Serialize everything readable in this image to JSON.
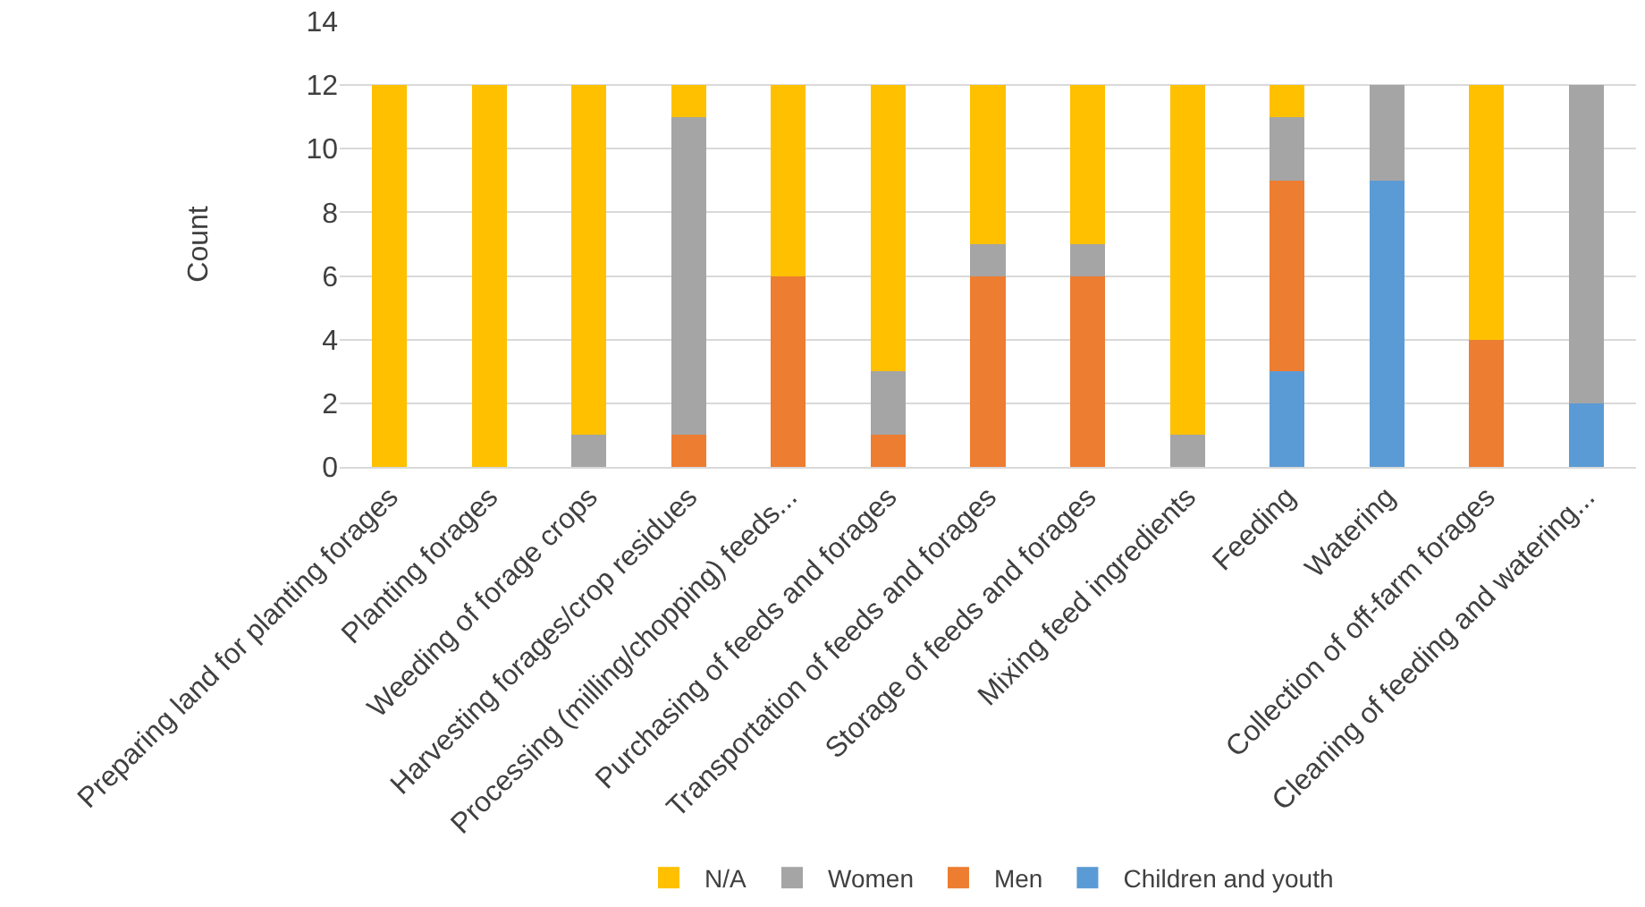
{
  "chart_data": {
    "type": "bar",
    "stacked": true,
    "ylabel": "Count",
    "categories": [
      "Preparing land for planting forages",
      "Planting forages",
      "Weeding of forage crops",
      "Harvesting forages/crop residues",
      "Processing (milling/chopping) feeds...",
      "Purchasing of feeds and forages",
      "Transportation of feeds and forages",
      "Storage of feeds and forages",
      "Mixing feed ingredients",
      "Feeding",
      "Watering",
      "Collection of off-farm forages",
      "Cleaning of feeding and watering..."
    ],
    "series": [
      {
        "name": "Children and youth",
        "color": "#5b9bd5",
        "values": [
          0,
          0,
          0,
          0,
          0,
          0,
          0,
          0,
          0,
          3,
          9,
          0,
          2
        ]
      },
      {
        "name": "Men",
        "color": "#ed7d31",
        "values": [
          0,
          0,
          0,
          1,
          6,
          1,
          6,
          6,
          0,
          6,
          0,
          4,
          0
        ]
      },
      {
        "name": "Women",
        "color": "#a5a5a5",
        "values": [
          0,
          0,
          1,
          10,
          0,
          2,
          1,
          1,
          1,
          2,
          3,
          0,
          10
        ]
      },
      {
        "name": "N/A",
        "color": "#ffc000",
        "values": [
          12,
          12,
          11,
          1,
          6,
          9,
          5,
          5,
          11,
          1,
          0,
          8,
          0
        ]
      }
    ],
    "ylim": [
      0,
      14
    ],
    "yticks": [
      0,
      2,
      4,
      6,
      8,
      10,
      12,
      14
    ],
    "grid": "y",
    "legend": "bottom"
  }
}
